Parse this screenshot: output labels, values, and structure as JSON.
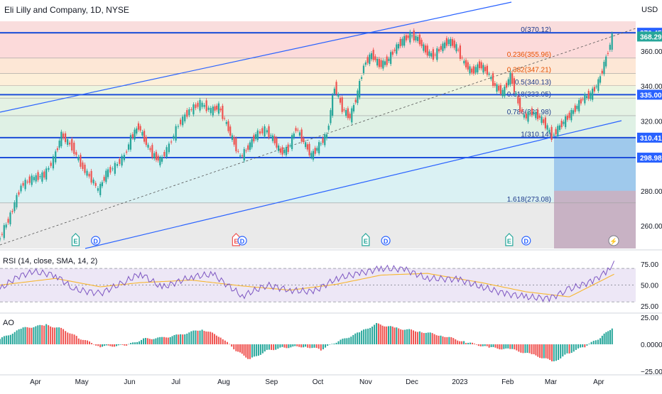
{
  "header": {
    "title": "Eli Lilly and Company, 1D, NYSE",
    "currency": "USD"
  },
  "colors": {
    "up": "#26a69a",
    "down": "#ef5350",
    "trend": "#2962ff",
    "hline": "#1e4fd9",
    "rsi": "#7e57c2",
    "rsi_ma": "#f7b731",
    "rsi_band": "#ede7f6",
    "ao_up": "#26a69a",
    "ao_down": "#ef5350"
  },
  "chart_data": [
    {
      "type": "candlestick",
      "title": "Eli Lilly and Company, 1D, NYSE",
      "ylabel": "USD",
      "ylim": [
        247,
        377
      ],
      "x_range": [
        "2022-03-09",
        "2023-04-25"
      ],
      "x_ticks": [
        "Apr",
        "May",
        "Jun",
        "Jul",
        "Aug",
        "Sep",
        "Oct",
        "Nov",
        "Dec",
        "2023",
        "Feb",
        "Mar",
        "Apr"
      ],
      "y_ticks": [
        260,
        280,
        300,
        320,
        340,
        360
      ],
      "price_tags": [
        {
          "label": "370.45",
          "value": 370.45,
          "color": "#2962ff"
        },
        {
          "label": "368.29",
          "value": 368.29,
          "color": "#26a69a"
        },
        {
          "label": "335.00",
          "value": 335.0,
          "color": "#2962ff"
        },
        {
          "label": "310.41",
          "value": 310.41,
          "color": "#2962ff"
        },
        {
          "label": "298.98",
          "value": 298.98,
          "color": "#2962ff"
        }
      ],
      "fib_levels": [
        {
          "label": "0(370.12)",
          "value": 370.12
        },
        {
          "label": "0.236(355.96)",
          "value": 355.96
        },
        {
          "label": "0.382(347.21)",
          "value": 347.21
        },
        {
          "label": "0.5(340.13)",
          "value": 340.13
        },
        {
          "label": "0.618(333.05)",
          "value": 333.05
        },
        {
          "label": "0.786(322.98)",
          "value": 322.98
        },
        {
          "label": "1(310.14)",
          "value": 310.14
        },
        {
          "label": "1.618(273.08)",
          "value": 273.08
        }
      ],
      "events": [
        {
          "date": "2022-04-27",
          "label": "E"
        },
        {
          "date": "2022-05-10",
          "label": "D"
        },
        {
          "date": "2022-08-09",
          "label": "E"
        },
        {
          "date": "2022-08-13",
          "label": "D"
        },
        {
          "date": "2022-11-01",
          "label": "E"
        },
        {
          "date": "2022-11-14",
          "label": "D"
        },
        {
          "date": "2023-02-02",
          "label": "E"
        },
        {
          "date": "2023-02-13",
          "label": "D"
        }
      ],
      "series": [
        {
          "name": "Price",
          "points": [
            [
              "2022-03-09",
              251
            ],
            [
              "2022-03-17",
              266
            ],
            [
              "2022-03-24",
              283
            ],
            [
              "2022-03-31",
              287
            ],
            [
              "2022-04-08",
              289
            ],
            [
              "2022-04-14",
              298
            ],
            [
              "2022-04-19",
              312
            ],
            [
              "2022-04-26",
              305
            ],
            [
              "2022-05-03",
              293
            ],
            [
              "2022-05-10",
              285
            ],
            [
              "2022-05-13",
              280
            ],
            [
              "2022-05-18",
              290
            ],
            [
              "2022-05-24",
              294
            ],
            [
              "2022-05-30",
              300
            ],
            [
              "2022-06-03",
              310
            ],
            [
              "2022-06-08",
              317
            ],
            [
              "2022-06-13",
              307
            ],
            [
              "2022-06-17",
              301
            ],
            [
              "2022-06-22",
              297
            ],
            [
              "2022-06-28",
              306
            ],
            [
              "2022-07-04",
              318
            ],
            [
              "2022-07-11",
              326
            ],
            [
              "2022-07-18",
              330
            ],
            [
              "2022-07-25",
              326
            ],
            [
              "2022-07-30",
              328
            ],
            [
              "2022-08-04",
              318
            ],
            [
              "2022-08-09",
              307
            ],
            [
              "2022-08-13",
              299
            ],
            [
              "2022-08-18",
              305
            ],
            [
              "2022-08-23",
              312
            ],
            [
              "2022-08-29",
              315
            ],
            [
              "2022-09-03",
              310
            ],
            [
              "2022-09-08",
              302
            ],
            [
              "2022-09-13",
              304
            ],
            [
              "2022-09-18",
              316
            ],
            [
              "2022-09-23",
              308
            ],
            [
              "2022-09-28",
              300
            ],
            [
              "2022-10-03",
              306
            ],
            [
              "2022-10-08",
              312
            ],
            [
              "2022-10-13",
              340
            ],
            [
              "2022-10-18",
              327
            ],
            [
              "2022-10-23",
              322
            ],
            [
              "2022-10-28",
              336
            ],
            [
              "2022-11-01",
              352
            ],
            [
              "2022-11-06",
              358
            ],
            [
              "2022-11-11",
              352
            ],
            [
              "2022-11-16",
              354
            ],
            [
              "2022-11-21",
              361
            ],
            [
              "2022-11-26",
              366
            ],
            [
              "2022-12-01",
              369
            ],
            [
              "2022-12-06",
              367
            ],
            [
              "2022-12-11",
              360
            ],
            [
              "2022-12-16",
              357
            ],
            [
              "2022-12-21",
              362
            ],
            [
              "2022-12-26",
              366
            ],
            [
              "2022-12-31",
              362
            ],
            [
              "2023-01-05",
              353
            ],
            [
              "2023-01-10",
              348
            ],
            [
              "2023-01-15",
              352
            ],
            [
              "2023-01-20",
              348
            ],
            [
              "2023-01-25",
              340
            ],
            [
              "2023-01-30",
              336
            ],
            [
              "2023-02-04",
              346
            ],
            [
              "2023-02-09",
              330
            ],
            [
              "2023-02-13",
              322
            ],
            [
              "2023-02-18",
              325
            ],
            [
              "2023-02-23",
              322
            ],
            [
              "2023-02-28",
              316
            ],
            [
              "2023-03-03",
              311
            ],
            [
              "2023-03-08",
              317
            ],
            [
              "2023-03-13",
              322
            ],
            [
              "2023-03-18",
              327
            ],
            [
              "2023-03-23",
              333
            ],
            [
              "2023-03-28",
              335
            ],
            [
              "2023-04-02",
              342
            ],
            [
              "2023-04-07",
              356
            ],
            [
              "2023-04-11",
              368
            ]
          ]
        }
      ]
    },
    {
      "type": "line",
      "title": "RSI (14, close, SMA, 14, 2)",
      "ylim": [
        20,
        87
      ],
      "y_ticks": [
        25,
        50,
        75
      ],
      "bands": [
        30,
        50,
        70
      ],
      "series": [
        {
          "name": "RSI",
          "points": [
            [
              "2022-03-09",
              45
            ],
            [
              "2022-03-20",
              60
            ],
            [
              "2022-03-31",
              66
            ],
            [
              "2022-04-14",
              62
            ],
            [
              "2022-04-26",
              45
            ],
            [
              "2022-05-13",
              40
            ],
            [
              "2022-05-30",
              55
            ],
            [
              "2022-06-08",
              64
            ],
            [
              "2022-06-22",
              47
            ],
            [
              "2022-07-11",
              60
            ],
            [
              "2022-07-25",
              63
            ],
            [
              "2022-08-13",
              37
            ],
            [
              "2022-08-29",
              50
            ],
            [
              "2022-09-13",
              44
            ],
            [
              "2022-09-28",
              42
            ],
            [
              "2022-10-13",
              58
            ],
            [
              "2022-10-28",
              64
            ],
            [
              "2022-11-11",
              70
            ],
            [
              "2022-11-26",
              69
            ],
            [
              "2022-12-11",
              58
            ],
            [
              "2022-12-31",
              57
            ],
            [
              "2023-01-15",
              48
            ],
            [
              "2023-01-30",
              40
            ],
            [
              "2023-02-13",
              36
            ],
            [
              "2023-02-28",
              34
            ],
            [
              "2023-03-13",
              45
            ],
            [
              "2023-03-28",
              55
            ],
            [
              "2023-04-07",
              67
            ],
            [
              "2023-04-11",
              79
            ]
          ]
        },
        {
          "name": "RSI-based MA",
          "points": [
            [
              "2022-03-09",
              50
            ],
            [
              "2022-04-14",
              58
            ],
            [
              "2022-05-13",
              48
            ],
            [
              "2022-06-08",
              53
            ],
            [
              "2022-07-11",
              56
            ],
            [
              "2022-08-13",
              49
            ],
            [
              "2022-09-13",
              44
            ],
            [
              "2022-10-13",
              51
            ],
            [
              "2022-11-11",
              62
            ],
            [
              "2022-12-11",
              64
            ],
            [
              "2023-01-15",
              53
            ],
            [
              "2023-02-13",
              42
            ],
            [
              "2023-03-13",
              36
            ],
            [
              "2023-04-11",
              63
            ]
          ]
        }
      ]
    },
    {
      "type": "bar",
      "title": "AO",
      "ylim": [
        -27,
        27
      ],
      "y_ticks": [
        "25.00",
        "0.0000",
        "−25.00"
      ],
      "series": [
        {
          "name": "AO",
          "points": [
            [
              "2022-03-09",
              5
            ],
            [
              "2022-03-24",
              15
            ],
            [
              "2022-04-08",
              18
            ],
            [
              "2022-04-19",
              14
            ],
            [
              "2022-04-29",
              6
            ],
            [
              "2022-05-13",
              -2
            ],
            [
              "2022-05-30",
              -1
            ],
            [
              "2022-06-10",
              5
            ],
            [
              "2022-06-22",
              6
            ],
            [
              "2022-07-04",
              9
            ],
            [
              "2022-07-18",
              14
            ],
            [
              "2022-07-30",
              7
            ],
            [
              "2022-08-09",
              -6
            ],
            [
              "2022-08-18",
              -14
            ],
            [
              "2022-08-29",
              -6
            ],
            [
              "2022-09-08",
              -3
            ],
            [
              "2022-09-23",
              -2
            ],
            [
              "2022-10-03",
              -5
            ],
            [
              "2022-10-13",
              2
            ],
            [
              "2022-10-28",
              11
            ],
            [
              "2022-11-08",
              19
            ],
            [
              "2022-11-21",
              15
            ],
            [
              "2022-12-06",
              12
            ],
            [
              "2022-12-21",
              8
            ],
            [
              "2023-01-05",
              2
            ],
            [
              "2023-01-20",
              -3
            ],
            [
              "2023-02-04",
              -5
            ],
            [
              "2023-02-18",
              -10
            ],
            [
              "2023-03-03",
              -16
            ],
            [
              "2023-03-13",
              -8
            ],
            [
              "2023-03-23",
              -2
            ],
            [
              "2023-04-02",
              6
            ],
            [
              "2023-04-11",
              17
            ]
          ]
        }
      ]
    }
  ]
}
